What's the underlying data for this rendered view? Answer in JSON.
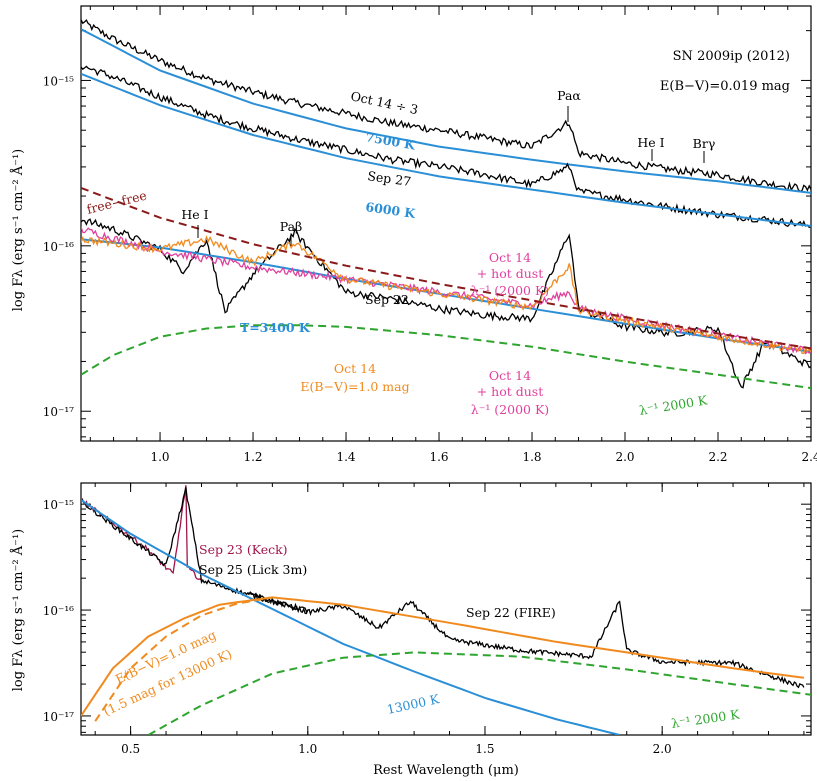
{
  "chart_data": [
    {
      "type": "line",
      "title": "SN 2009ip (2012)",
      "reddening": "E(B−V)=0.019 mag",
      "xlabel": "",
      "ylabel": "log Fλ (erg s⁻¹ cm⁻² Å⁻¹)",
      "xlim": [
        0.83,
        2.4
      ],
      "ylim_log10": [
        -17.18,
        -14.55
      ],
      "x_ticks": [
        "1.0",
        "1.2",
        "1.4",
        "1.6",
        "1.8",
        "2.0",
        "2.2",
        "2.4"
      ],
      "y_ticks": [
        "10⁻¹⁷",
        "10⁻¹⁶",
        "10⁻¹⁵"
      ],
      "series": [
        {
          "name": "Oct 14 ÷ 3",
          "color": "#000000",
          "x": [
            0.83,
            0.9,
            1.0,
            1.1,
            1.2,
            1.3,
            1.4,
            1.5,
            1.6,
            1.7,
            1.8,
            1.88,
            1.9,
            2.0,
            2.1,
            2.2,
            2.3,
            2.4
          ],
          "log_flux": [
            -14.64,
            -14.75,
            -14.88,
            -14.99,
            -15.07,
            -15.14,
            -15.2,
            -15.26,
            -15.3,
            -15.35,
            -15.4,
            -15.25,
            -15.44,
            -15.5,
            -15.54,
            -15.57,
            -15.62,
            -15.66
          ]
        },
        {
          "name": "7500 K",
          "color": "#2a8fd6",
          "x": [
            0.83,
            1.0,
            1.2,
            1.4,
            1.6,
            1.8,
            2.0,
            2.2,
            2.4
          ],
          "log_flux": [
            -14.69,
            -14.94,
            -15.14,
            -15.29,
            -15.4,
            -15.48,
            -15.55,
            -15.61,
            -15.68
          ]
        },
        {
          "name": "Sep 27",
          "color": "#000000",
          "x": [
            0.83,
            0.9,
            1.0,
            1.1,
            1.2,
            1.3,
            1.4,
            1.5,
            1.6,
            1.7,
            1.8,
            1.88,
            1.9,
            2.0,
            2.1,
            2.2,
            2.3,
            2.4
          ],
          "log_flux": [
            -14.91,
            -14.98,
            -15.1,
            -15.21,
            -15.29,
            -15.36,
            -15.42,
            -15.48,
            -15.52,
            -15.57,
            -15.63,
            -15.52,
            -15.67,
            -15.72,
            -15.77,
            -15.81,
            -15.84,
            -15.88
          ]
        },
        {
          "name": "6000 K",
          "color": "#2a8fd6",
          "x": [
            0.83,
            1.0,
            1.2,
            1.4,
            1.6,
            1.8,
            2.0,
            2.2,
            2.4
          ],
          "log_flux": [
            -14.96,
            -15.15,
            -15.33,
            -15.47,
            -15.58,
            -15.66,
            -15.74,
            -15.81,
            -15.88
          ]
        },
        {
          "name": "Sep 22",
          "color": "#000000",
          "x": [
            0.83,
            0.9,
            1.0,
            1.05,
            1.1,
            1.14,
            1.2,
            1.29,
            1.4,
            1.5,
            1.6,
            1.7,
            1.8,
            1.88,
            1.9,
            2.0,
            2.1,
            2.2,
            2.25,
            2.3,
            2.4
          ],
          "log_flux": [
            -15.84,
            -15.9,
            -16.02,
            -16.15,
            -15.96,
            -16.4,
            -16.17,
            -15.92,
            -16.28,
            -16.32,
            -16.38,
            -16.42,
            -16.44,
            -15.92,
            -16.38,
            -16.49,
            -16.53,
            -16.5,
            -16.86,
            -16.58,
            -16.73
          ]
        },
        {
          "name": "T=3400 K",
          "color": "#2a8fd6",
          "x": [
            0.83,
            1.0,
            1.2,
            1.4,
            1.6,
            1.8,
            2.0,
            2.2,
            2.4
          ],
          "log_flux": [
            -15.96,
            -16.01,
            -16.1,
            -16.2,
            -16.29,
            -16.38,
            -16.47,
            -16.56,
            -16.64
          ]
        },
        {
          "name": "Oct 14 + hot dust λ⁻¹ (2000 K)",
          "color": "#e0409e",
          "x": [
            0.83,
            1.0,
            1.2,
            1.4,
            1.6,
            1.8,
            1.88,
            1.9,
            2.0,
            2.2,
            2.4
          ],
          "log_flux": [
            -15.9,
            -16.03,
            -16.13,
            -16.2,
            -16.28,
            -16.36,
            -16.28,
            -16.38,
            -16.44,
            -16.54,
            -16.64
          ]
        },
        {
          "name": "Oct 14 E(B−V)=1.0 mag",
          "color": "#f08a1e",
          "x": [
            0.83,
            1.0,
            1.1,
            1.2,
            1.29,
            1.4,
            1.6,
            1.8,
            1.88,
            1.9,
            2.0,
            2.2,
            2.4
          ],
          "log_flux": [
            -15.96,
            -16.02,
            -15.96,
            -16.1,
            -15.98,
            -16.2,
            -16.29,
            -16.37,
            -16.12,
            -16.39,
            -16.45,
            -16.55,
            -16.64
          ]
        },
        {
          "name": "free-free",
          "color": "#8b1a1a",
          "x": [
            0.83,
            1.0,
            1.2,
            1.4,
            1.6,
            1.8,
            2.0,
            2.2,
            2.4
          ],
          "log_flux": [
            -15.65,
            -15.83,
            -15.99,
            -16.12,
            -16.23,
            -16.33,
            -16.43,
            -16.53,
            -16.62
          ]
        },
        {
          "name": "λ⁻¹ 2000 K",
          "color": "#2fa52f",
          "x": [
            0.83,
            0.9,
            1.0,
            1.1,
            1.2,
            1.3,
            1.4,
            1.6,
            1.8,
            2.0,
            2.2,
            2.4
          ],
          "log_flux": [
            -16.78,
            -16.66,
            -16.55,
            -16.5,
            -16.48,
            -16.48,
            -16.49,
            -16.54,
            -16.61,
            -16.7,
            -16.78,
            -16.86
          ]
        }
      ],
      "annotations": [
        "He I",
        "Paβ",
        "Paα",
        "He I",
        "Brγ",
        "free−free",
        "Oct 14 ÷ 3",
        "7500 K",
        "Sep 27",
        "6000 K",
        "Sep 22",
        "T=3400 K",
        "Oct 14",
        "E(B−V)=1.0 mag",
        "Oct 14",
        "+ hot dust",
        "λ⁻¹ (2000 K)",
        "Oct 14",
        "+ hot dust",
        "λ⁻¹ (2000 K)",
        "λ⁻¹ 2000 K"
      ]
    },
    {
      "type": "line",
      "title": "",
      "xlabel": "Rest Wavelength (μm)",
      "ylabel": "log Fλ (erg s⁻¹ cm⁻² Å⁻¹)",
      "xlim": [
        0.36,
        2.42
      ],
      "ylim_log10": [
        -17.18,
        -14.8
      ],
      "x_ticks": [
        "0.5",
        "1.0",
        "1.5",
        "2.0"
      ],
      "y_ticks": [
        "10⁻¹⁷",
        "10⁻¹⁶",
        "10⁻¹⁵"
      ],
      "series": [
        {
          "name": "Sep 23 (Keck)",
          "color": "#a0144a",
          "x": [
            0.36,
            0.45,
            0.55,
            0.6,
            0.62,
            0.656,
            0.66,
            0.7
          ],
          "log_flux": [
            -14.96,
            -15.18,
            -15.43,
            -15.6,
            -15.66,
            -14.82,
            -15.6,
            -15.72
          ]
        },
        {
          "name": "Sep 25 (Lick 3m)",
          "color": "#000000",
          "x": [
            0.36,
            0.45,
            0.55,
            0.6,
            0.656,
            0.7,
            0.8,
            0.9,
            1.0
          ],
          "log_flux": [
            -14.97,
            -15.2,
            -15.45,
            -15.58,
            -14.86,
            -15.72,
            -15.82,
            -15.92,
            -16.0
          ]
        },
        {
          "name": "Sep 22 (FIRE)",
          "color": "#000000",
          "x": [
            0.83,
            1.0,
            1.1,
            1.2,
            1.29,
            1.4,
            1.6,
            1.8,
            1.88,
            1.9,
            2.0,
            2.2,
            2.4
          ],
          "log_flux": [
            -15.84,
            -16.02,
            -15.96,
            -16.17,
            -15.92,
            -16.28,
            -16.38,
            -16.44,
            -15.92,
            -16.38,
            -16.49,
            -16.5,
            -16.73
          ]
        },
        {
          "name": "13000 K",
          "color": "#2a8fd6",
          "x": [
            0.36,
            0.5,
            0.7,
            0.9,
            1.1,
            1.3,
            1.5,
            1.7,
            1.88
          ],
          "log_flux": [
            -14.96,
            -15.28,
            -15.66,
            -15.99,
            -16.32,
            -16.58,
            -16.83,
            -17.03,
            -17.18
          ]
        },
        {
          "name": "E(B−V)=1.0 mag",
          "color": "#f08a1e",
          "x": [
            0.36,
            0.45,
            0.55,
            0.65,
            0.75,
            0.9,
            1.1,
            1.4,
            1.7,
            2.0,
            2.2,
            2.4
          ],
          "log_flux": [
            -17.0,
            -16.55,
            -16.25,
            -16.08,
            -15.95,
            -15.88,
            -15.95,
            -16.12,
            -16.3,
            -16.45,
            -16.55,
            -16.64
          ]
        },
        {
          "name": "1.5 mag for 13000 K",
          "color": "#f08a1e",
          "x": [
            0.4,
            0.5,
            0.6,
            0.7,
            0.8,
            0.9
          ],
          "log_flux": [
            -17.05,
            -16.55,
            -16.25,
            -16.05,
            -15.94,
            -15.88
          ]
        },
        {
          "name": "λ⁻¹ 2000 K",
          "color": "#2fa52f",
          "x": [
            0.55,
            0.7,
            0.9,
            1.1,
            1.3,
            1.6,
            1.9,
            2.2,
            2.42
          ],
          "log_flux": [
            -17.18,
            -16.9,
            -16.6,
            -16.45,
            -16.4,
            -16.44,
            -16.56,
            -16.7,
            -16.8
          ]
        }
      ],
      "annotations": [
        "Sep 23 (Keck)",
        "Sep 25 (Lick 3m)",
        "Sep 22 (FIRE)",
        "E(B−V)=1.0 mag",
        "(1.5 mag for 13000 K)",
        "13000 K",
        "λ⁻¹ 2000 K"
      ]
    }
  ]
}
